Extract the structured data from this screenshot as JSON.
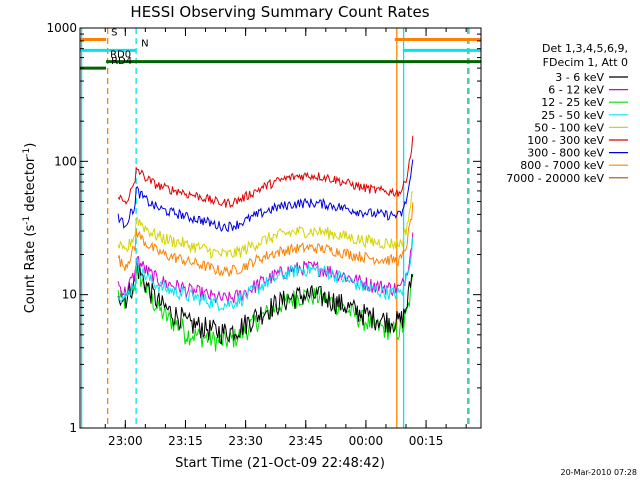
{
  "chart_data": {
    "type": "line",
    "title": "HESSI Observing Summary Count Rates",
    "xlabel": "Start Time (21-Oct-09 22:48:42)",
    "ylabel": "Count Rate (s",
    "ylabel_sup": "-1",
    "ylabel_mid": " detector",
    "ylabel_end": ")",
    "y_scale": "log",
    "ylim": [
      1,
      1000
    ],
    "xlim": [
      0,
      100
    ],
    "x_units": "minutes after 22:48:42",
    "y_ticks": [
      {
        "value": 1,
        "label": "1"
      },
      {
        "value": 10,
        "label": "10"
      },
      {
        "value": 100,
        "label": "100"
      },
      {
        "value": 1000,
        "label": "1000"
      }
    ],
    "x_ticks": [
      {
        "value": 11.3,
        "label": "23:00"
      },
      {
        "value": 26.3,
        "label": "23:15"
      },
      {
        "value": 41.3,
        "label": "23:30"
      },
      {
        "value": 56.3,
        "label": "23:45"
      },
      {
        "value": 71.3,
        "label": "00:00"
      },
      {
        "value": 86.3,
        "label": "00:15"
      }
    ],
    "legend_title": [
      "Det 1,3,4,5,6,9,",
      "FDecim 1, Att 0"
    ],
    "legend_position": "right",
    "data_start": 9.5,
    "data_end": 83.0,
    "series": [
      {
        "name": "3 - 6 keV",
        "color": "#000000",
        "base": 6.2,
        "amp": 1.6,
        "noise": 0.14,
        "start": 17
      },
      {
        "name": "6 - 12 keV",
        "color": "#d400d4",
        "base": 11.0,
        "amp": 1.45,
        "noise": 0.07,
        "start": 19
      },
      {
        "name": "12 - 25 keV",
        "color": "#00e000",
        "base": 5.2,
        "amp": 1.9,
        "noise": 0.12,
        "start": 16
      },
      {
        "name": "25 - 50 keV",
        "color": "#00e5ee",
        "base": 10.0,
        "amp": 1.55,
        "noise": 0.06,
        "start": 17
      },
      {
        "name": "50 - 100 keV",
        "color": "#d4d400",
        "base": 24.0,
        "amp": 1.25,
        "noise": 0.05,
        "start": 38
      },
      {
        "name": "100 - 300 keV",
        "color": "#e00000",
        "base": 58.0,
        "amp": 1.35,
        "noise": 0.02,
        "start": 90
      },
      {
        "name": "300 - 800 keV",
        "color": "#0000e0",
        "base": 39.0,
        "amp": 1.25,
        "noise": 0.025,
        "start": 62
      },
      {
        "name": "800 - 7000 keV",
        "color": "#ff8000",
        "base": 18.0,
        "amp": 1.25,
        "noise": 0.035,
        "start": 30
      },
      {
        "name": "7000 - 20000 keV",
        "color": "#a05a00",
        "base": 0,
        "amp": 0,
        "noise": 0,
        "start": 0
      }
    ],
    "flag_bars": [
      {
        "label": "S",
        "color": "#ff8000",
        "value": 820,
        "segments": [
          [
            0,
            6.5
          ],
          [
            78.5,
            100
          ]
        ]
      },
      {
        "label": "N",
        "color": "#00e5ee",
        "value": 680,
        "segments": [
          [
            0,
            14
          ],
          [
            80.5,
            100
          ]
        ]
      },
      {
        "label": "RD0",
        "color": "#006400",
        "value": 560,
        "segments": [
          [
            6.5,
            100
          ]
        ]
      },
      {
        "label": "RD4",
        "color": "#006400",
        "value": 500,
        "segments": [
          [
            0,
            6.5
          ]
        ]
      }
    ],
    "vertical_markers": [
      {
        "x": 0.4,
        "color": "#00e5ee",
        "style": "solid"
      },
      {
        "x": 6.9,
        "color": "#ff8000",
        "style": "dashed"
      },
      {
        "x": 14.0,
        "color": "#00e5ee",
        "style": "dashed"
      },
      {
        "x": 79.0,
        "color": "#ff8000",
        "style": "solid"
      },
      {
        "x": 80.7,
        "color": "#00e5ee",
        "style": "solid"
      },
      {
        "x": 96.7,
        "color": "#ff8000",
        "style": "dashed"
      },
      {
        "x": 97.0,
        "color": "#00e5ee",
        "style": "dashed"
      }
    ]
  },
  "timestamp": "20-Mar-2010 07:28"
}
